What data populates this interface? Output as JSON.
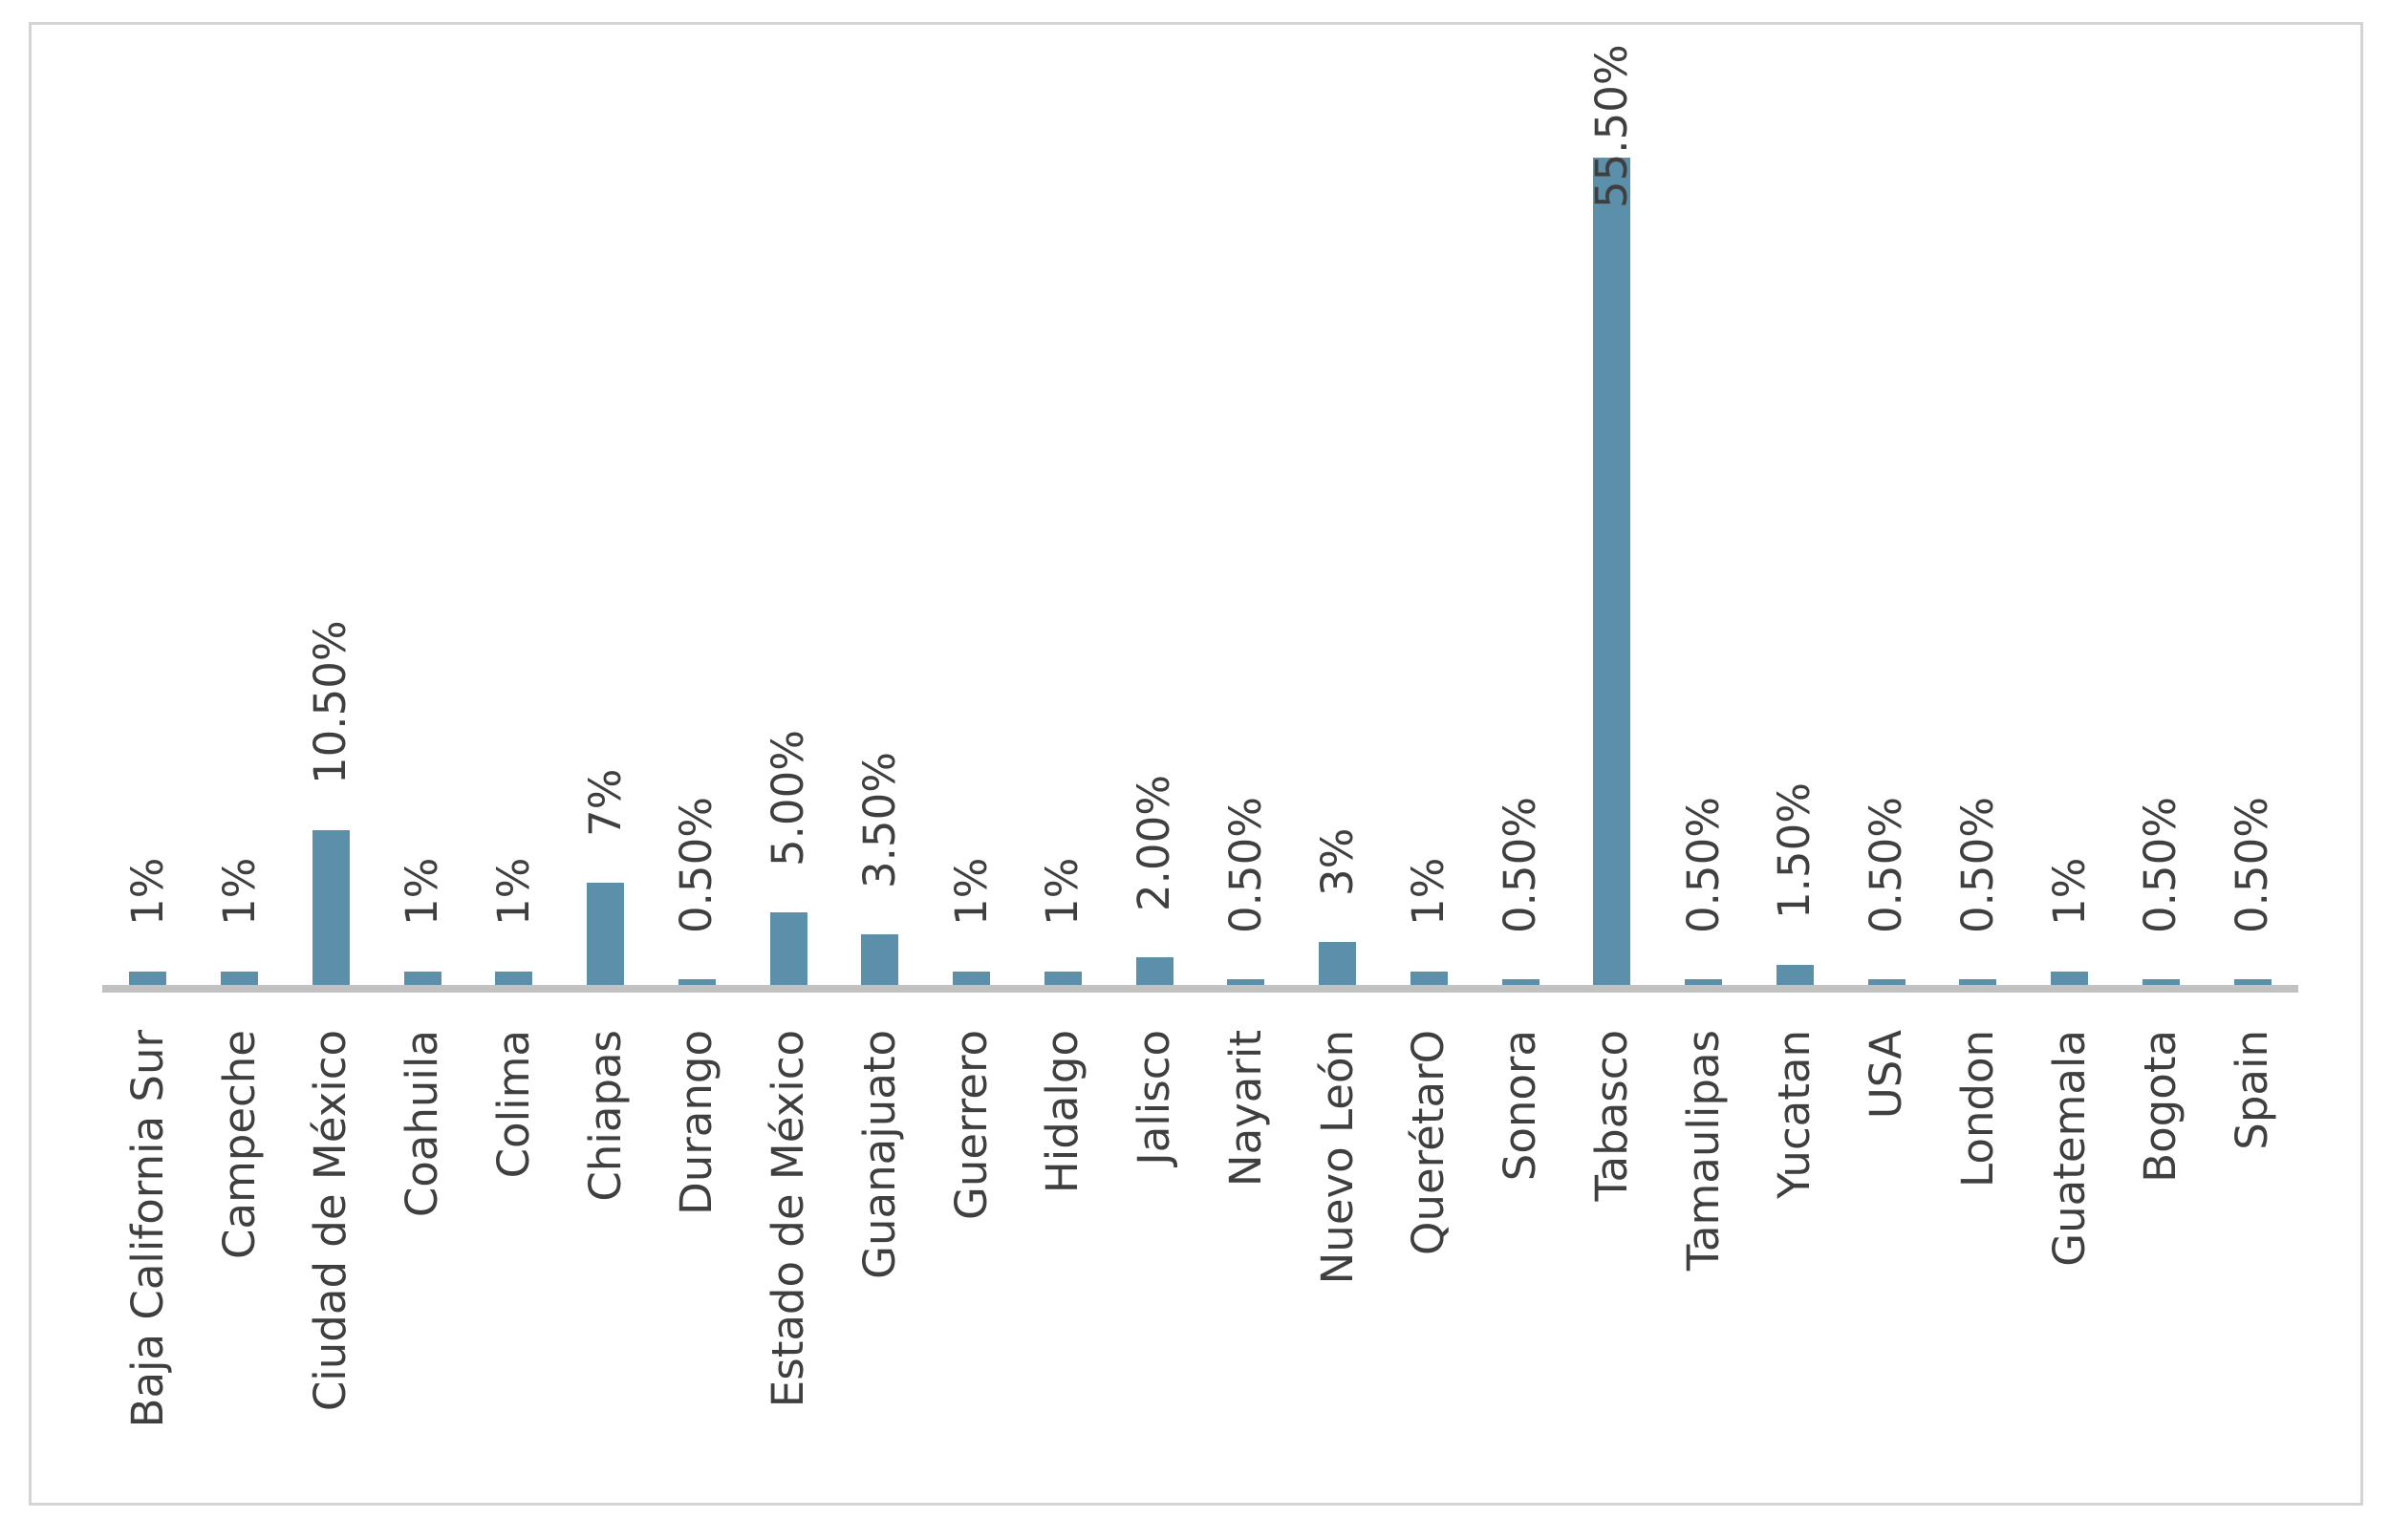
{
  "chart_data": {
    "type": "bar",
    "title": "",
    "xlabel": "",
    "ylabel": "",
    "ylim": [
      0,
      60
    ],
    "grid": false,
    "legend": false,
    "data_label_rotation": -90,
    "category_label_rotation": -90,
    "bar_color": "#5C8FA9",
    "axis_line_color": "#c1c1c1",
    "label_color": "#3f3f3f",
    "border_color": "#d4d4d4",
    "categories": [
      "Baja California Sur",
      "Campeche",
      "Ciudad de México",
      "Coahuila",
      "Colima",
      "Chiapas",
      "Durango",
      "Estado de México",
      "Guanajuato",
      "Guerrero",
      "Hidalgo",
      "Jalisco",
      "Nayarit",
      "Nuevo León",
      "QuerétarO",
      "Sonora",
      "Tabasco",
      "Tamaulipas",
      "Yucatan",
      "USA",
      "London",
      "Guatemala",
      "Bogota",
      "Spain"
    ],
    "values": [
      1,
      1,
      10.5,
      1,
      1,
      7,
      0.5,
      5,
      3.5,
      1,
      1,
      2,
      0.5,
      3,
      1,
      0.5,
      55.5,
      0.5,
      1.5,
      0.5,
      0.5,
      1,
      0.5,
      0.5
    ],
    "labels": [
      "1%",
      "1%",
      "10.50%",
      "1%",
      "1%",
      "7%",
      "0.50%",
      "5.00%",
      "3.50%",
      "1%",
      "1%",
      "2.00%",
      "0.50%",
      "3%",
      "1%",
      "0.50%",
      "55.50%",
      "0.50%",
      "1.50%",
      "0.50%",
      "0.50%",
      "1%",
      "0.50%",
      "0.50%"
    ]
  }
}
